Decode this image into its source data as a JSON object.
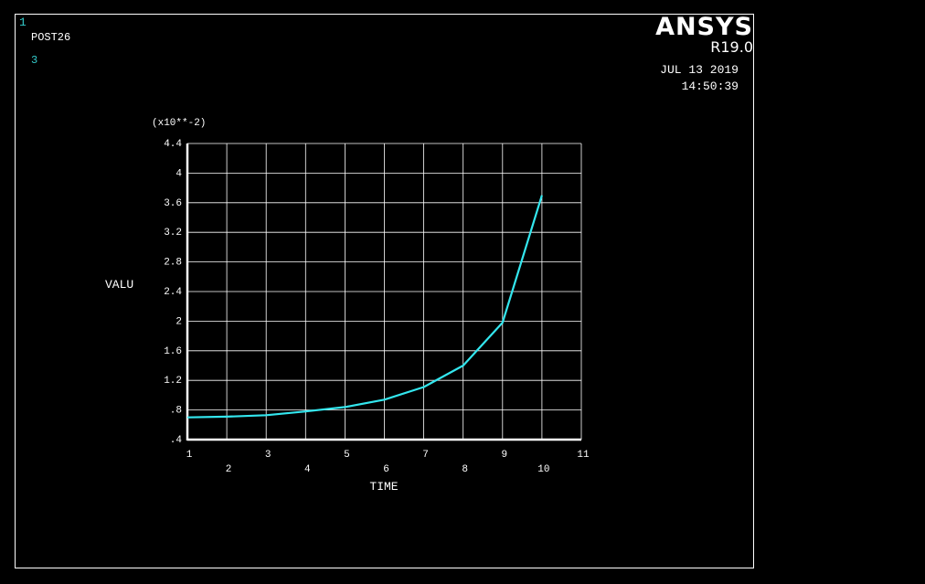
{
  "header": {
    "window_number": "1",
    "post_label": "POST26",
    "curve_number": "3",
    "brand": "ANSYS",
    "version": "R19.0",
    "date": "JUL 13 2019",
    "time": "14:50:39"
  },
  "colors": {
    "background": "#000000",
    "grid": "#ffffff",
    "series": "#33e6ee",
    "label_accent": "#33cccc"
  },
  "chart_data": {
    "type": "line",
    "title": "",
    "xlabel": "TIME",
    "ylabel": "VALU",
    "y_multiplier_label": "(x10**-2)",
    "xlim": [
      1,
      11
    ],
    "ylim": [
      0.4,
      4.4
    ],
    "x_ticks": [
      1,
      2,
      3,
      4,
      5,
      6,
      7,
      8,
      9,
      10,
      11
    ],
    "x_tick_labels": [
      "1",
      "2",
      "3",
      "4",
      "5",
      "6",
      "7",
      "8",
      "9",
      "10",
      "11"
    ],
    "y_ticks": [
      0.4,
      0.8,
      1.2,
      1.6,
      2.0,
      2.4,
      2.8,
      3.2,
      3.6,
      4.0,
      4.4
    ],
    "y_tick_labels": [
      ".4",
      ".8",
      "1.2",
      "1.6",
      "2",
      "2.4",
      "2.8",
      "3.2",
      "3.6",
      "4",
      "4.4"
    ],
    "grid": true,
    "series": [
      {
        "x": [
          1,
          2,
          3,
          4,
          5,
          6,
          7,
          8,
          9,
          10
        ],
        "values": [
          0.7,
          0.71,
          0.73,
          0.78,
          0.84,
          0.94,
          1.11,
          1.4,
          1.98,
          3.7
        ]
      }
    ]
  }
}
